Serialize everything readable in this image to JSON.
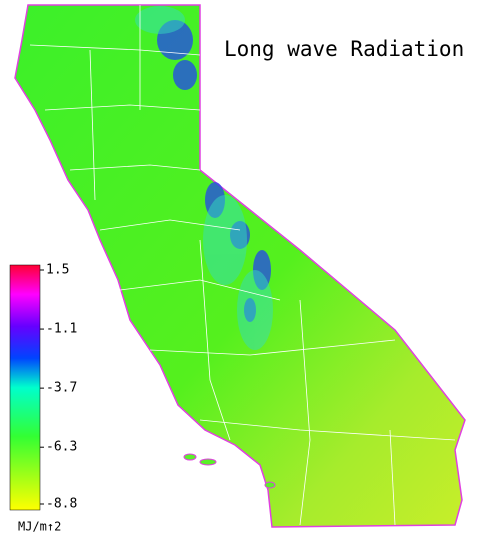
{
  "title": "Long wave Radiation",
  "colorbar": {
    "range": [
      -8.8,
      1.5
    ],
    "ticks": [
      1.5,
      -1.1,
      -3.7,
      -6.3,
      -8.8
    ],
    "unit": "MJ/m↑2"
  }
}
